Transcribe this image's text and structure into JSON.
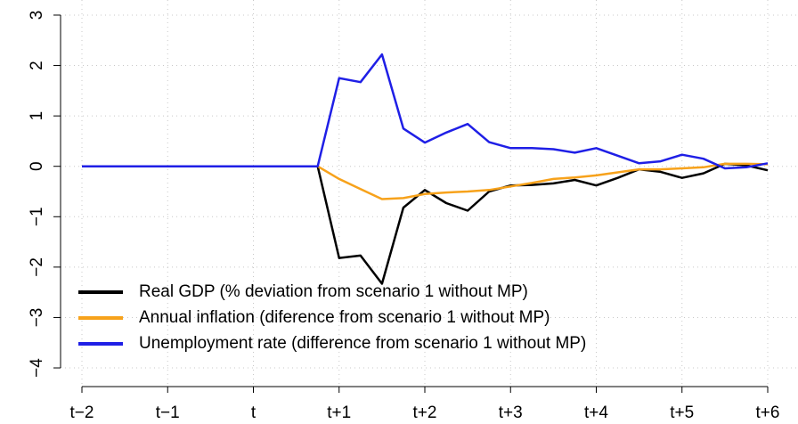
{
  "chart_data": {
    "type": "line",
    "categories": [
      "t−2",
      null,
      null,
      null,
      "t−1",
      null,
      null,
      null,
      "t",
      null,
      null,
      null,
      "t+1",
      null,
      null,
      null,
      "t+2",
      null,
      null,
      null,
      "t+3",
      null,
      null,
      null,
      "t+4",
      null,
      null,
      null,
      "t+5",
      null,
      null,
      null,
      "t+6"
    ],
    "series": [
      {
        "name": "Real GDP (% deviation from scenario 1 without MP)",
        "color": "#000000",
        "values": [
          0,
          0,
          0,
          0,
          0,
          0,
          0,
          0,
          0,
          0,
          0,
          0,
          -1.82,
          -1.77,
          -2.33,
          -0.82,
          -0.47,
          -0.73,
          -0.88,
          -0.5,
          -0.38,
          -0.37,
          -0.34,
          -0.27,
          -0.38,
          -0.23,
          -0.06,
          -0.11,
          -0.23,
          -0.14,
          0.05,
          0.02,
          -0.08
        ]
      },
      {
        "name": "Annual inflation (diference from scenario 1 without MP)",
        "color": "#f7a21b",
        "values": [
          0,
          0,
          0,
          0,
          0,
          0,
          0,
          0,
          0,
          0,
          0,
          0,
          -0.25,
          -0.45,
          -0.65,
          -0.63,
          -0.55,
          -0.52,
          -0.5,
          -0.47,
          -0.4,
          -0.33,
          -0.25,
          -0.22,
          -0.18,
          -0.12,
          -0.06,
          -0.06,
          -0.04,
          -0.02,
          0.05,
          0.05,
          0.04
        ]
      },
      {
        "name": "Unemployment rate (difference from scenario 1 without MP)",
        "color": "#1f1fe6",
        "values": [
          0,
          0,
          0,
          0,
          0,
          0,
          0,
          0,
          0,
          0,
          0,
          0,
          1.75,
          1.67,
          2.22,
          0.75,
          0.47,
          0.67,
          0.84,
          0.48,
          0.36,
          0.36,
          0.34,
          0.27,
          0.36,
          0.21,
          0.06,
          0.1,
          0.23,
          0.15,
          -0.04,
          -0.02,
          0.06
        ]
      }
    ],
    "ylim": [
      -4.3,
      3.3
    ],
    "yticks": [
      {
        "value": -4,
        "label": "−4"
      },
      {
        "value": -3,
        "label": "−3"
      },
      {
        "value": -2,
        "label": "−2"
      },
      {
        "value": -1,
        "label": "−1"
      },
      0,
      1,
      2,
      3
    ],
    "grid": true,
    "legend": "bottom-left"
  }
}
